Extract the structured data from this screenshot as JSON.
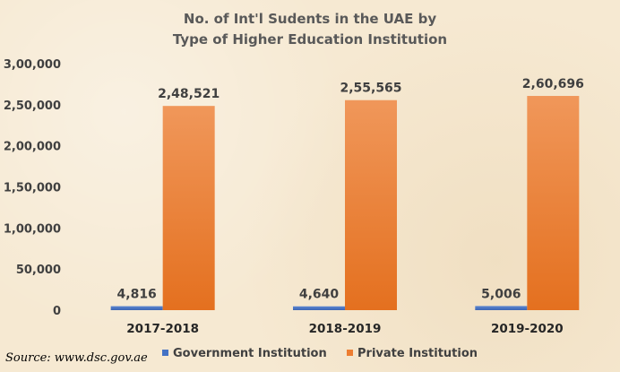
{
  "chart_data": {
    "type": "bar",
    "title_lines": [
      "No. of Int'l Sudents in the UAE by",
      "Type of Higher Education Institution"
    ],
    "categories": [
      "2017-2018",
      "2018-2019",
      "2019-2020"
    ],
    "series": [
      {
        "name": "Government Institution",
        "values": [
          4816,
          4640,
          5006
        ],
        "labels": [
          "4,816",
          "4,640",
          "5,006"
        ],
        "color": "#4472c4"
      },
      {
        "name": "Private Institution",
        "values": [
          248521,
          255565,
          260696
        ],
        "labels": [
          "2,48,521",
          "2,55,565",
          "2,60,696"
        ],
        "color": "#ed7d31"
      }
    ],
    "ylim": [
      0,
      300000
    ],
    "yticks": [
      0,
      50000,
      100000,
      150000,
      200000,
      250000,
      300000
    ],
    "ytick_labels": [
      "0",
      "50,000",
      "1,00,000",
      "1,50,000",
      "2,00,000",
      "2,50,000",
      "3,00,000"
    ],
    "grid": false,
    "legend_position": "bottom"
  },
  "source": "Source: www.dsc.gov.ae"
}
